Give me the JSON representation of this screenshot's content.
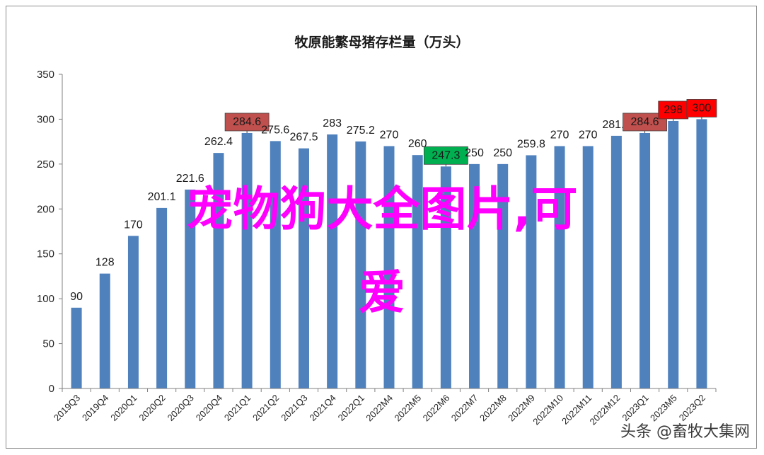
{
  "chart_data": {
    "type": "bar",
    "title": "牧原能繁母猪存栏量（万头）",
    "categories": [
      "2019Q3",
      "2019Q4",
      "2020Q1",
      "2020Q2",
      "2020Q3",
      "2020Q4",
      "2021Q1",
      "2021Q2",
      "2021Q3",
      "2021Q4",
      "2022Q1",
      "2022M4",
      "2022M5",
      "2022M6",
      "2022M7",
      "2022M8",
      "2022M9",
      "2022M10",
      "2022M11",
      "2022M12",
      "2023Q1",
      "2023M5",
      "2023Q2"
    ],
    "values": [
      90,
      128,
      170,
      201.1,
      221.6,
      262.4,
      284.6,
      275.6,
      267.5,
      283,
      275.2,
      270,
      260,
      247.3,
      250,
      250,
      259.8,
      270,
      270,
      281.5,
      284.6,
      298,
      300
    ],
    "value_labels": [
      "90",
      "128",
      "170",
      "201.1",
      "221.6",
      "262.4",
      "284.6",
      "275.6",
      "267.5",
      "283",
      "275.2",
      "270",
      "260",
      "247.3",
      "250",
      "250",
      "259.8",
      "270",
      "270",
      "281.5",
      "284.6",
      "298",
      "300"
    ],
    "highlights": {
      "6": "#c0504d",
      "13": "#00b050",
      "20": "#c0504d",
      "21": "#ff0000",
      "22": "#ff0000"
    },
    "ylim": [
      0,
      350
    ],
    "yticks": [
      0,
      50,
      100,
      150,
      200,
      250,
      300,
      350
    ],
    "bar_color": "#4f81bd",
    "grid": false,
    "legend": "none",
    "xlabel": "",
    "ylabel": ""
  },
  "overlay": {
    "line1": "宠物狗大全图片,可",
    "line2": "爱",
    "color": "#ff00ff"
  },
  "watermark": {
    "text": "头条 @畜牧大集网"
  }
}
